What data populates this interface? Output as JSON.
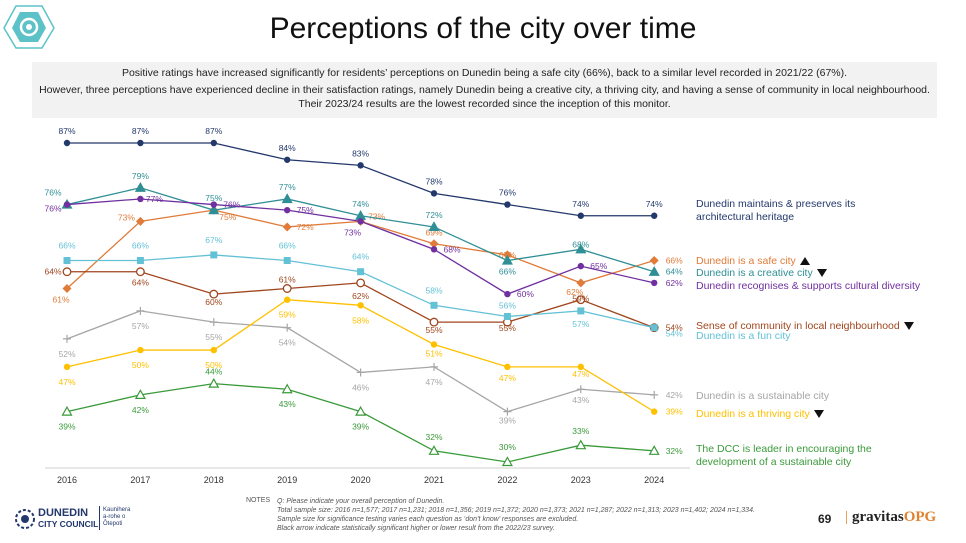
{
  "title": "Perceptions of the city over time",
  "summary": {
    "line1": "Positive ratings have increased significantly for residents’ perceptions on Dunedin being a safe city (66%), back to a similar level recorded in 2021/22 (67%).",
    "line2": "However, three perceptions have experienced decline in their satisfaction ratings, namely Dunedin being a creative city, a thriving city, and having a sense of community in local neighbourhood. Their 2023/24 results are the lowest recorded since the inception of this monitor."
  },
  "chart_data": {
    "type": "line",
    "x": [
      "2016",
      "2017",
      "2018",
      "2019",
      "2020",
      "2021",
      "2022",
      "2023",
      "2024"
    ],
    "ylim": [
      28,
      90
    ],
    "series": [
      {
        "name": "Dunedin maintains & preserves its architectural heritage",
        "color": "#23386b",
        "marker": "dot",
        "arrow": "",
        "values": [
          87,
          87,
          87,
          84,
          83,
          78,
          76,
          74,
          74
        ]
      },
      {
        "name": "Dunedin is a safe city",
        "color": "#e07b39",
        "marker": "diamond",
        "arrow": "up",
        "values": [
          61,
          73,
          75,
          72,
          73,
          69,
          67,
          62,
          66
        ]
      },
      {
        "name": "Dunedin is a creative city",
        "color": "#2f8f95",
        "marker": "triangle",
        "arrow": "down",
        "values": [
          76,
          79,
          75,
          77,
          74,
          72,
          66,
          68,
          64
        ]
      },
      {
        "name": "Dunedin recognises & supports cultural diversity",
        "color": "#7030a0",
        "marker": "dot",
        "arrow": "",
        "values": [
          76,
          77,
          76,
          75,
          73,
          68,
          60,
          65,
          62
        ]
      },
      {
        "name": "Sense of community in local neighbourhood",
        "color": "#a0461e",
        "marker": "circle",
        "arrow": "down",
        "values": [
          64,
          64,
          60,
          61,
          62,
          55,
          55,
          59,
          54
        ]
      },
      {
        "name": "Dunedin is a fun city",
        "color": "#63c1d6",
        "marker": "square",
        "arrow": "",
        "values": [
          66,
          66,
          67,
          66,
          64,
          58,
          56,
          57,
          54
        ]
      },
      {
        "name": "Dunedin is a sustainable city",
        "color": "#a6a6a6",
        "marker": "plus",
        "arrow": "",
        "values": [
          52,
          57,
          55,
          54,
          46,
          47,
          39,
          43,
          42
        ]
      },
      {
        "name": "Dunedin is a thriving city",
        "color": "#ffc000",
        "marker": "dot",
        "arrow": "down",
        "values": [
          47,
          50,
          50,
          59,
          58,
          51,
          47,
          47,
          39
        ]
      },
      {
        "name": "The DCC is leader in encouraging the development of a sustainable city",
        "color": "#3a9a3a",
        "marker": "triangle",
        "arrow": "",
        "values": [
          39,
          42,
          44,
          43,
          39,
          32,
          30,
          33,
          32
        ]
      }
    ]
  },
  "notes": {
    "label": "NOTES",
    "line1": "Q: Please indicate your overall perception of Dunedin.",
    "line2": "Total sample size: 2016 n=1,577; 2017 n=1,231; 2018 n=1,356; 2019 n=1,372; 2020 n=1,373; 2021 n=1,287; 2022 n=1,313; 2023 n=1,402; 2024 n=1,334.",
    "line3": "Sample size for significance testing varies each question as ‘don’t know’ responses are excluded.",
    "line4": "Black arrow indicate statistically significant higher or lower result from the 2022/23 survey."
  },
  "footer": {
    "org_line1": "DUNEDIN",
    "org_line2": "CITY COUNCIL",
    "maori_line1": "Kaunihera",
    "maori_line2": "a-rohe o",
    "maori_line3": "Ōtepoti",
    "page_number": "69",
    "brand_main": "gravitas",
    "brand_suffix": "OPG"
  }
}
